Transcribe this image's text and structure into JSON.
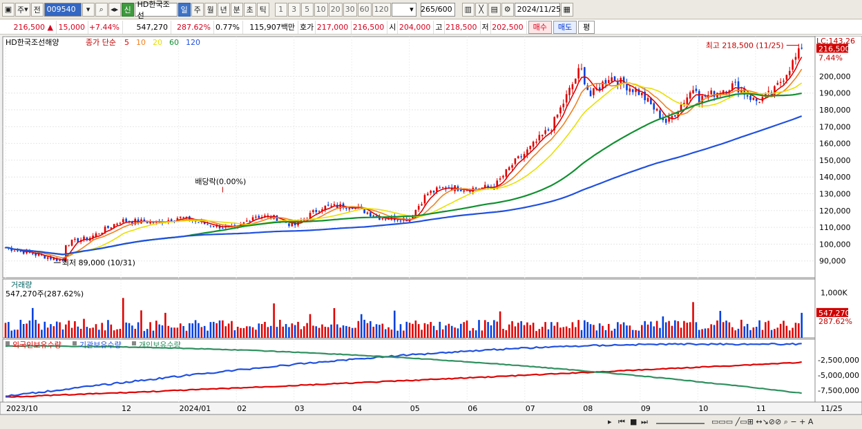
{
  "toolbar": {
    "type_label": "주",
    "prev_label": "전",
    "stock_code": "009540",
    "stock_badge": "신",
    "stock_name": "HD한국조선",
    "periods": [
      "일",
      "주",
      "월",
      "년",
      "분",
      "초",
      "틱"
    ],
    "active_period": "일",
    "intervals": [
      "1",
      "3",
      "5",
      "10",
      "20",
      "30",
      "60",
      "120"
    ],
    "count_value": "265",
    "count_max": "/600",
    "date_value": "2024/11/25"
  },
  "quote": {
    "price": "216,500",
    "change": "15,000",
    "change_pct": "+7.44%",
    "volume": "547,270",
    "volume_ratio": "287.62%",
    "turnover_pct": "0.77%",
    "amount": "115,907백만",
    "bid_label": "호가",
    "ask_price": "217,000",
    "bid_price": "216,500",
    "open_label": "시",
    "open": "204,000",
    "high_label": "고",
    "high": "218,500",
    "low_label": "저",
    "low": "202,500",
    "buy_label": "매수",
    "sell_label": "매도",
    "eval_label": "평"
  },
  "chart_data": [
    {
      "type": "candlestick",
      "title": "HD한국조선해양",
      "ma_label_prefix": "종가 단순",
      "ma_periods": [
        "5",
        "10",
        "20",
        "60",
        "120"
      ],
      "ma_colors": [
        "#e00000",
        "#f08020",
        "#e8e000",
        "#109030",
        "#2050e0"
      ],
      "x_ticks": [
        "2023/10",
        "12",
        "2024/01",
        "02",
        "03",
        "04",
        "05",
        "06",
        "07",
        "08",
        "09",
        "10",
        "11"
      ],
      "x_end_label": "11/25",
      "y_ticks": [
        "200,000",
        "190,000",
        "180,000",
        "170,000",
        "160,000",
        "150,000",
        "140,000",
        "130,000",
        "120,000",
        "110,000",
        "100,000",
        "90,000"
      ],
      "y_range": [
        80000,
        222000
      ],
      "lc_label": "LC:143,26",
      "current_price_label": "216,500",
      "current_pct_label": "7.44%",
      "high_annotation": "최고 218,500 (11/25)",
      "low_annotation": "최저 89,000 (10/31)",
      "dividend_annotation": "배당락(0.00%)",
      "close_points": [
        [
          "2023/10",
          98000
        ],
        [
          "2023/10/31",
          90000
        ],
        [
          "2023/11",
          100000
        ],
        [
          "2023/11/15",
          104000
        ],
        [
          "2023/12",
          114000
        ],
        [
          "2023/12/20",
          113000
        ],
        [
          "2024/01",
          116000
        ],
        [
          "2024/01/15",
          112000
        ],
        [
          "2024/02",
          109000
        ],
        [
          "2024/02/10",
          117000
        ],
        [
          "2024/02/20",
          116000
        ],
        [
          "2024/03",
          111000
        ],
        [
          "2024/03/15",
          122000
        ],
        [
          "2024/04",
          123000
        ],
        [
          "2024/04/15",
          116000
        ],
        [
          "2024/05",
          115000
        ],
        [
          "2024/05/10",
          130000
        ],
        [
          "2024/05/20",
          134000
        ],
        [
          "2024/06",
          133000
        ],
        [
          "2024/06/15",
          134000
        ],
        [
          "2024/06/25",
          148000
        ],
        [
          "2024/07",
          154000
        ],
        [
          "2024/07/15",
          170000
        ],
        [
          "2024/07/30",
          205000
        ],
        [
          "2024/08/05",
          188000
        ],
        [
          "2024/08/15",
          200000
        ],
        [
          "2024/09",
          190000
        ],
        [
          "2024/09/15",
          172000
        ],
        [
          "2024/09/30",
          195000
        ],
        [
          "2024/10",
          186000
        ],
        [
          "2024/10/20",
          195000
        ],
        [
          "2024/11",
          185000
        ],
        [
          "2024/11/10",
          190000
        ],
        [
          "2024/11/25",
          216500
        ]
      ]
    },
    {
      "type": "bar",
      "title": "거래량",
      "subtitle": "547,270주(287.62%)",
      "y_ticks": [
        "1,000K"
      ],
      "current_label": "547,270",
      "current_pct_label": "287.62%"
    },
    {
      "type": "line",
      "series": [
        {
          "name": "외국인보유수량",
          "color": "#e00000"
        },
        {
          "name": "기관보유수량",
          "color": "#2050e0"
        },
        {
          "name": "개인보유수량",
          "color": "#309060"
        }
      ],
      "y_ticks": [
        "-2,500,000",
        "-5,000,000",
        "-7,500,000"
      ]
    }
  ]
}
